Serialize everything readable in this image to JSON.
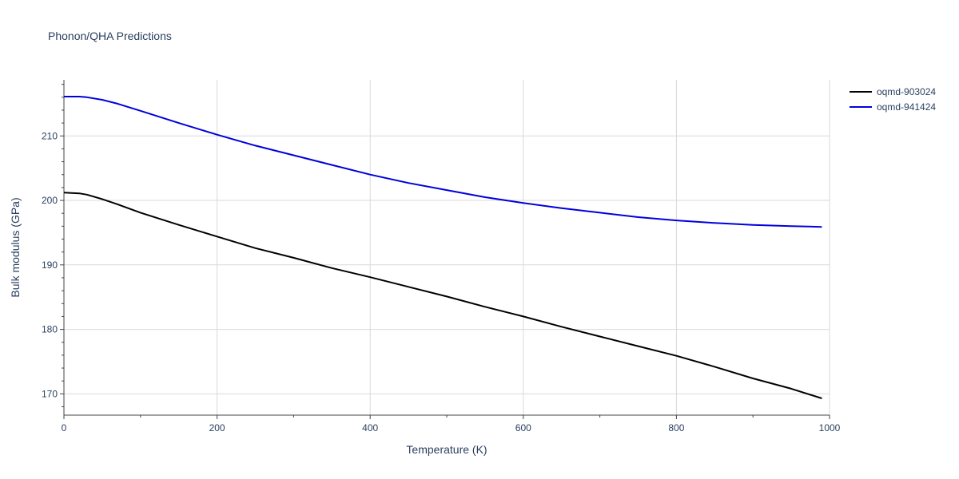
{
  "chart_data": {
    "type": "line",
    "title": "Phonon/QHA Predictions",
    "xlabel": "Temperature (K)",
    "ylabel": "Bulk modulus (GPa)",
    "xlim": [
      0,
      1000
    ],
    "ylim": [
      166.7,
      218.7
    ],
    "x_ticks": [
      0,
      200,
      400,
      600,
      800,
      1000
    ],
    "y_ticks": [
      170,
      180,
      190,
      200,
      210
    ],
    "grid": true,
    "legend_position": "top-right",
    "series": [
      {
        "name": "oqmd-903024",
        "color": "#000000",
        "x": [
          0,
          20,
          30,
          50,
          70,
          100,
          150,
          200,
          250,
          300,
          350,
          400,
          450,
          500,
          550,
          600,
          650,
          700,
          750,
          800,
          850,
          900,
          950,
          990
        ],
        "y": [
          201.2,
          201.1,
          200.9,
          200.2,
          199.4,
          198.1,
          196.2,
          194.4,
          192.6,
          191.1,
          189.5,
          188.1,
          186.6,
          185.1,
          183.5,
          182.0,
          180.4,
          178.9,
          177.4,
          175.9,
          174.2,
          172.4,
          170.8,
          169.3
        ]
      },
      {
        "name": "oqmd-941424",
        "color": "#0000dd",
        "x": [
          0,
          20,
          30,
          50,
          70,
          100,
          150,
          200,
          250,
          300,
          350,
          400,
          450,
          500,
          550,
          600,
          650,
          700,
          750,
          800,
          850,
          900,
          950,
          990
        ],
        "y": [
          216.1,
          216.1,
          216.0,
          215.6,
          215.0,
          213.9,
          212.0,
          210.2,
          208.5,
          207.0,
          205.5,
          204.0,
          202.7,
          201.6,
          200.5,
          199.6,
          198.8,
          198.1,
          197.4,
          196.9,
          196.5,
          196.2,
          196.0,
          195.9
        ]
      }
    ]
  }
}
